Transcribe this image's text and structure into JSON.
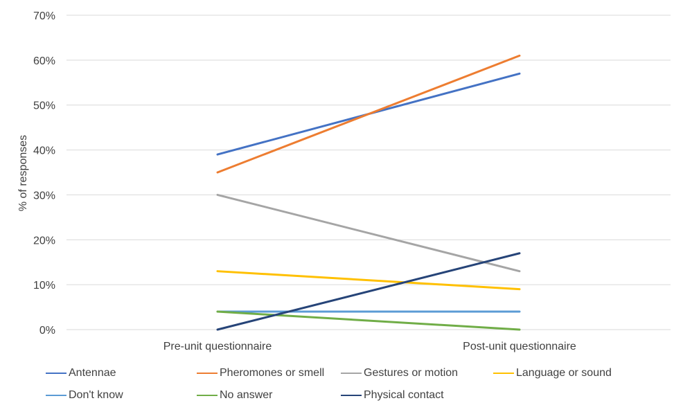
{
  "chart_data": {
    "type": "line",
    "title": "",
    "xlabel": "",
    "ylabel": "% of responses",
    "categories": [
      "Pre-unit questionnaire",
      "Post-unit questionnaire"
    ],
    "ylim": [
      0,
      70
    ],
    "y_ticks": [
      "0%",
      "10%",
      "20%",
      "30%",
      "40%",
      "50%",
      "60%",
      "70%"
    ],
    "grid": true,
    "legend_position": "bottom",
    "series": [
      {
        "name": "Antennae",
        "color": "#4472C4",
        "values": [
          39,
          57
        ]
      },
      {
        "name": "Pheromones or smell",
        "color": "#ED7D31",
        "values": [
          35,
          61
        ]
      },
      {
        "name": "Gestures or motion",
        "color": "#A5A5A5",
        "values": [
          30,
          13
        ]
      },
      {
        "name": "Language or sound",
        "color": "#FFC000",
        "values": [
          13,
          9
        ]
      },
      {
        "name": "Don't know",
        "color": "#5B9BD5",
        "values": [
          4,
          4
        ]
      },
      {
        "name": "No answer",
        "color": "#70AD47",
        "values": [
          4,
          0
        ]
      },
      {
        "name": "Physical contact",
        "color": "#264478",
        "values": [
          0,
          17
        ]
      }
    ]
  }
}
